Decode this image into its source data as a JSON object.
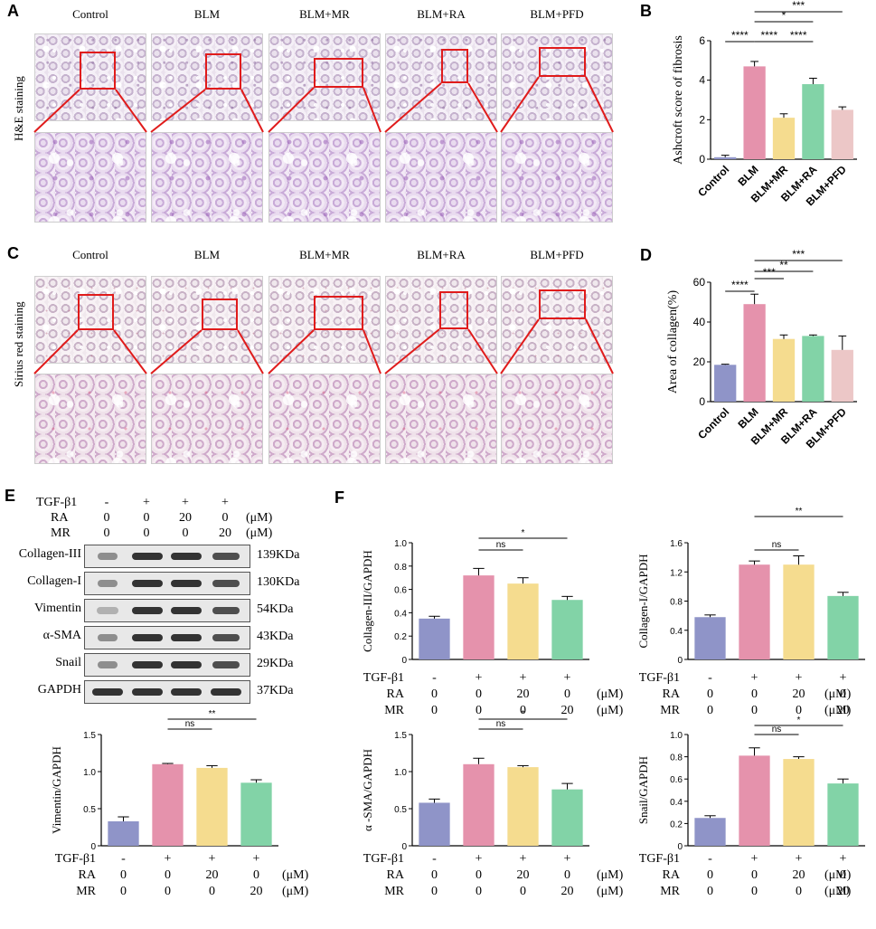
{
  "panels": {
    "A": {
      "letter": "A",
      "stain": "H&E staining",
      "groups": [
        "Control",
        "BLM",
        "BLM+MR",
        "BLM+RA",
        "BLM+PFD"
      ]
    },
    "C": {
      "letter": "C",
      "stain": "Sirius red staining",
      "groups": [
        "Control",
        "BLM",
        "BLM+MR",
        "BLM+RA",
        "BLM+PFD"
      ]
    },
    "E": {
      "letter": "E",
      "treat_rows": [
        {
          "label": "TGF-β1",
          "vals": [
            "-",
            "+",
            "+",
            "+"
          ],
          "unit": ""
        },
        {
          "label": "RA",
          "vals": [
            "0",
            "0",
            "20",
            "0"
          ],
          "unit": "(μM)"
        },
        {
          "label": "MR",
          "vals": [
            "0",
            "0",
            "0",
            "20"
          ],
          "unit": "(μM)"
        }
      ],
      "blots": [
        {
          "name": "Collagen-III",
          "size": "139KDa"
        },
        {
          "name": "Collagen-I",
          "size": "130KDa"
        },
        {
          "name": "Vimentin",
          "size": "54KDa"
        },
        {
          "name": "α-SMA",
          "size": "43KDa"
        },
        {
          "name": "Snail",
          "size": "29KDa"
        },
        {
          "name": "GAPDH",
          "size": "37KDa"
        }
      ]
    },
    "F": {
      "letter": "F"
    }
  },
  "colors": {
    "control": "#8f94c8",
    "blm": "#e592ac",
    "mr": "#f5dc8f",
    "ra": "#82d3a7",
    "pfd": "#ecc7c7"
  },
  "chart_data": [
    {
      "id": "B",
      "letter": "B",
      "type": "bar",
      "categories": [
        "Control",
        "BLM",
        "BLM+MR",
        "BLM+RA",
        "BLM+PFD"
      ],
      "values": [
        0.1,
        4.7,
        2.1,
        3.8,
        2.5
      ],
      "errors": [
        0.1,
        0.25,
        0.2,
        0.3,
        0.15
      ],
      "ylabel": "Ashcroft score of fibrosis",
      "ylim": [
        0,
        6
      ],
      "yticks": [
        0,
        2,
        4,
        6
      ],
      "sig": [
        {
          "from": 0,
          "to": 1,
          "text": "****"
        },
        {
          "from": 1,
          "to": 2,
          "text": "****"
        },
        {
          "from": 2,
          "to": 3,
          "text": "****"
        },
        {
          "from": 1,
          "to": 3,
          "text": "*"
        },
        {
          "from": 1,
          "to": 4,
          "text": "***"
        }
      ]
    },
    {
      "id": "D",
      "letter": "D",
      "type": "bar",
      "categories": [
        "Control",
        "BLM",
        "BLM+MR",
        "BLM+RA",
        "BLM+PFD"
      ],
      "values": [
        18.5,
        49,
        31.5,
        33,
        26
      ],
      "errors": [
        0.3,
        5,
        2,
        0.5,
        7
      ],
      "ylabel": "Area of collagen(%)",
      "ylim": [
        0,
        60
      ],
      "yticks": [
        0,
        20,
        40,
        60
      ],
      "sig": [
        {
          "from": 0,
          "to": 1,
          "text": "****"
        },
        {
          "from": 1,
          "to": 2,
          "text": "***"
        },
        {
          "from": 1,
          "to": 3,
          "text": "**"
        },
        {
          "from": 1,
          "to": 4,
          "text": "***"
        }
      ]
    },
    {
      "id": "E-vim",
      "type": "bar",
      "categories": [
        "1",
        "2",
        "3",
        "4"
      ],
      "values": [
        0.33,
        1.1,
        1.05,
        0.85
      ],
      "errors": [
        0.06,
        0.01,
        0.03,
        0.04
      ],
      "ylabel": "Vimentin/GAPDH",
      "ylim": [
        0,
        1.5
      ],
      "yticks": [
        0,
        0.5,
        1.0,
        1.5
      ],
      "yfmt": 1,
      "sig": [
        {
          "from": 1,
          "to": 2,
          "text": "ns"
        },
        {
          "from": 1,
          "to": 3,
          "text": "**"
        }
      ]
    },
    {
      "id": "F-col3",
      "type": "bar",
      "categories": [
        "1",
        "2",
        "3",
        "4"
      ],
      "values": [
        0.35,
        0.72,
        0.65,
        0.51
      ],
      "errors": [
        0.02,
        0.06,
        0.05,
        0.03
      ],
      "ylabel": "Collagen-III/GAPDH",
      "ylim": [
        0,
        1.0
      ],
      "yticks": [
        0,
        0.2,
        0.4,
        0.6,
        0.8,
        1.0
      ],
      "yfmt": 1,
      "sig": [
        {
          "from": 1,
          "to": 2,
          "text": "ns"
        },
        {
          "from": 1,
          "to": 3,
          "text": "*"
        }
      ]
    },
    {
      "id": "F-col1",
      "type": "bar",
      "categories": [
        "1",
        "2",
        "3",
        "4"
      ],
      "values": [
        0.58,
        1.3,
        1.3,
        0.87
      ],
      "errors": [
        0.03,
        0.05,
        0.12,
        0.05
      ],
      "ylabel": "Collagen-I/GAPDH",
      "ylim": [
        0,
        1.6
      ],
      "yticks": [
        0,
        0.4,
        0.8,
        1.2,
        1.6
      ],
      "yfmt": 1,
      "sig": [
        {
          "from": 1,
          "to": 2,
          "text": "ns"
        },
        {
          "from": 1,
          "to": 3,
          "text": "**"
        }
      ]
    },
    {
      "id": "F-sma",
      "type": "bar",
      "categories": [
        "1",
        "2",
        "3",
        "4"
      ],
      "values": [
        0.58,
        1.1,
        1.06,
        0.76
      ],
      "errors": [
        0.05,
        0.08,
        0.02,
        0.08
      ],
      "ylabel": "α -SMA/GAPDH",
      "ylim": [
        0,
        1.5
      ],
      "yticks": [
        0,
        0.5,
        1.0,
        1.5
      ],
      "yfmt": 1,
      "sig": [
        {
          "from": 1,
          "to": 2,
          "text": "ns"
        },
        {
          "from": 1,
          "to": 3,
          "text": "*"
        }
      ]
    },
    {
      "id": "F-snail",
      "type": "bar",
      "categories": [
        "1",
        "2",
        "3",
        "4"
      ],
      "values": [
        0.25,
        0.81,
        0.78,
        0.56
      ],
      "errors": [
        0.02,
        0.07,
        0.02,
        0.04
      ],
      "ylabel": "Snail/GAPDH",
      "ylim": [
        0,
        1.0
      ],
      "yticks": [
        0,
        0.2,
        0.4,
        0.6,
        0.8,
        1.0
      ],
      "yfmt": 1,
      "sig": [
        {
          "from": 1,
          "to": 2,
          "text": "ns"
        },
        {
          "from": 1,
          "to": 3,
          "text": "*"
        }
      ]
    }
  ],
  "treat_labels": {
    "rows": [
      {
        "label": "TGF-β1",
        "vals": [
          "-",
          "+",
          "+",
          "+"
        ],
        "unit": ""
      },
      {
        "label": "RA",
        "vals": [
          "0",
          "0",
          "20",
          "0"
        ],
        "unit": "(μM)"
      },
      {
        "label": "MR",
        "vals": [
          "0",
          "0",
          "0",
          "20"
        ],
        "unit": "(μM)"
      }
    ]
  }
}
